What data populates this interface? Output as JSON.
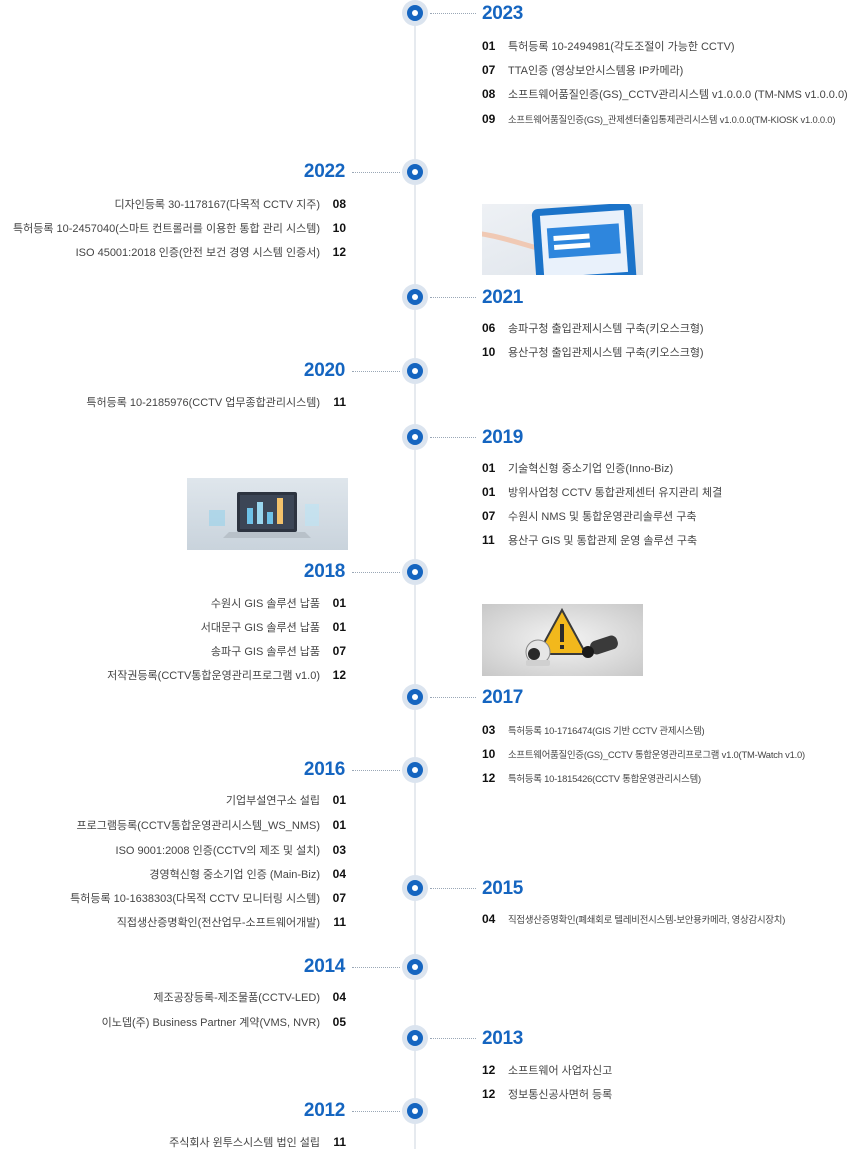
{
  "timeline": {
    "y2023": {
      "year": "2023",
      "items": [
        {
          "m": "01",
          "t": "특허등록 10-2494981(각도조절이 가능한 CCTV)"
        },
        {
          "m": "07",
          "t": "TTA인증 (영상보안시스템용 IP카메라)"
        },
        {
          "m": "08",
          "t": "소프트웨어품질인증(GS)_CCTV관리시스템 v1.0.0.0 (TM-NMS v1.0.0.0)"
        },
        {
          "m": "09",
          "t": "소프트웨어품질인증(GS)_관제센터출입통제관리시스템 v1.0.0.0(TM-KIOSK v1.0.0.0)"
        }
      ]
    },
    "y2022": {
      "year": "2022",
      "items": [
        {
          "m": "08",
          "t": "디자인등록 30-1178167(다목적 CCTV 지주)"
        },
        {
          "m": "10",
          "t": "특허등록 10-2457040(스마트 컨트롤러를 이용한 통합 관리 시스템)"
        },
        {
          "m": "12",
          "t": "ISO 45001:2018 인증(안전 보건 경영 시스템 인증서)"
        }
      ]
    },
    "y2021": {
      "year": "2021",
      "items": [
        {
          "m": "06",
          "t": "송파구청 출입관제시스템 구축(키오스크형)"
        },
        {
          "m": "10",
          "t": "용산구청 출입관제시스템 구축(키오스크형)"
        }
      ]
    },
    "y2020": {
      "year": "2020",
      "items": [
        {
          "m": "11",
          "t": "특허등록 10-2185976(CCTV 업무종합관리시스템)"
        }
      ]
    },
    "y2019": {
      "year": "2019",
      "items": [
        {
          "m": "01",
          "t": "기술혁신형 중소기업 인증(Inno-Biz)"
        },
        {
          "m": "01",
          "t": "방위사업청 CCTV 통합관제센터 유지관리 체결"
        },
        {
          "m": "07",
          "t": "수원시 NMS 및 통합운영관리솔루션 구축"
        },
        {
          "m": "11",
          "t": "용산구 GIS 및 통합관제 운영 솔루션 구축"
        }
      ]
    },
    "y2018": {
      "year": "2018",
      "items": [
        {
          "m": "01",
          "t": "수원시 GIS 솔루션 납품"
        },
        {
          "m": "01",
          "t": "서대문구 GIS 솔루션 납품"
        },
        {
          "m": "07",
          "t": "송파구 GIS 솔루션 납품"
        },
        {
          "m": "12",
          "t": "저작권등록(CCTV통합운영관리프로그램 v1.0)"
        }
      ]
    },
    "y2017": {
      "year": "2017",
      "items": [
        {
          "m": "03",
          "t": "특허등록 10-1716474(GIS 기반 CCTV 관제시스템)"
        },
        {
          "m": "10",
          "t": "소프트웨어품질인증(GS)_CCTV 통합운영관리프로그램 v1.0(TM-Watch v1.0)"
        },
        {
          "m": "12",
          "t": "특허등록 10-1815426(CCTV 통합운영관리시스템)"
        }
      ]
    },
    "y2016": {
      "year": "2016",
      "items": [
        {
          "m": "01",
          "t": "기업부설연구소 설립"
        },
        {
          "m": "01",
          "t": "프로그램등록(CCTV통합운영관리시스템_WS_NMS)"
        },
        {
          "m": "03",
          "t": "ISO 9001:2008 인증(CCTV의 제조 및 설치)"
        },
        {
          "m": "04",
          "t": "경영혁신형 중소기업 인증 (Main-Biz)"
        },
        {
          "m": "07",
          "t": "특허등록 10-1638303(다목적 CCTV 모니터링 시스템)"
        },
        {
          "m": "11",
          "t": "직접생산증명확인(전산업무-소프트웨어개발)"
        }
      ]
    },
    "y2015": {
      "year": "2015",
      "items": [
        {
          "m": "04",
          "t": "직접생산증명확인(폐쇄회로 텔레비전시스템-보안용카메라, 영상감시장치)"
        }
      ]
    },
    "y2014": {
      "year": "2014",
      "items": [
        {
          "m": "04",
          "t": "제조공장등록-제조물품(CCTV-LED)"
        },
        {
          "m": "05",
          "t": "이노뎁(주) Business Partner 계약(VMS, NVR)"
        }
      ]
    },
    "y2013": {
      "year": "2013",
      "items": [
        {
          "m": "12",
          "t": "소프트웨어 사업자신고"
        },
        {
          "m": "12",
          "t": "정보통신공사면허 등록"
        }
      ]
    },
    "y2012": {
      "year": "2012",
      "items": [
        {
          "m": "11",
          "t": "주식회사 윈투스시스템 법인 설립"
        }
      ]
    }
  },
  "images": [
    {
      "name": "kiosk-touch-photo"
    },
    {
      "name": "laptop-dashboard-photo"
    },
    {
      "name": "cctv-warning-photo"
    }
  ],
  "colors": {
    "accent": "#1565c0",
    "axis": "#e6eaef",
    "text": "#444444",
    "month": "#111111"
  }
}
